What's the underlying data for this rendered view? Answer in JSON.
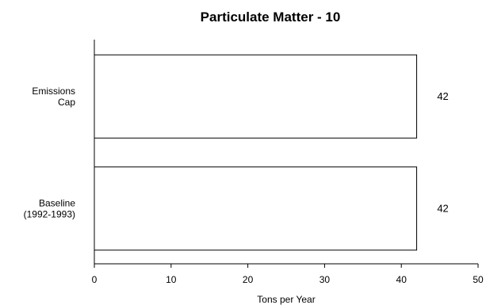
{
  "chart_data": {
    "type": "bar",
    "orientation": "horizontal",
    "title": "Particulate Matter - 10",
    "xlabel": "Tons per Year",
    "ylabel": "",
    "categories": [
      [
        "Emissions",
        "Cap"
      ],
      [
        "Baseline",
        "(1992-1993)"
      ]
    ],
    "values": [
      42,
      42
    ],
    "data_labels": [
      "42",
      "42"
    ],
    "xlim": [
      0,
      50
    ],
    "xticks": [
      0,
      10,
      20,
      30,
      40,
      50
    ],
    "xtick_labels": [
      "0",
      "10",
      "20",
      "30",
      "40",
      "50"
    ],
    "grid": false,
    "bar_fill": "#ffffff",
    "bar_stroke": "#000000"
  }
}
